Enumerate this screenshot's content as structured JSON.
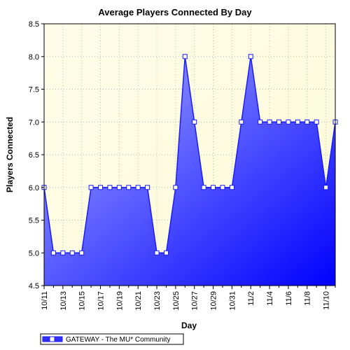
{
  "chart_data": {
    "type": "area",
    "title": "Average Players Connected By Day",
    "xlabel": "Day",
    "ylabel": "Players Connected",
    "ylim": [
      4.5,
      8.5
    ],
    "yticks": [
      "4.5",
      "5.0",
      "5.5",
      "6.0",
      "6.5",
      "7.0",
      "7.5",
      "8.0",
      "8.5"
    ],
    "x": [
      "10/11",
      "10/12",
      "10/13",
      "10/14",
      "10/15",
      "10/16",
      "10/17",
      "10/18",
      "10/19",
      "10/20",
      "10/21",
      "10/22",
      "10/23",
      "10/24",
      "10/25",
      "10/26",
      "10/27",
      "10/28",
      "10/29",
      "10/30",
      "10/31",
      "11/1",
      "11/2",
      "11/3",
      "11/4",
      "11/5",
      "11/6",
      "11/7",
      "11/8",
      "11/9",
      "11/10",
      "11/11"
    ],
    "xtick_labels": [
      "10/11",
      "10/13",
      "10/15",
      "10/17",
      "10/19",
      "10/21",
      "10/23",
      "10/25",
      "10/27",
      "10/29",
      "10/31",
      "11/2",
      "11/4",
      "11/6",
      "11/8",
      "11/10"
    ],
    "series": [
      {
        "name": "GATEWAY - The MU* Community",
        "values": [
          6,
          5,
          5,
          5,
          5,
          6,
          6,
          6,
          6,
          6,
          6,
          6,
          5,
          5,
          6,
          8,
          7,
          6,
          6,
          6,
          6,
          7,
          8,
          7,
          7,
          7,
          7,
          7,
          7,
          7,
          6,
          7
        ]
      }
    ],
    "grid": true,
    "legend_position": "bottom-left",
    "colors": {
      "plot_bg": "#fdfce0",
      "area_top": "#aab0ff",
      "area_bottom": "#0000ff",
      "line": "#1a1aff",
      "marker_fill": "#ffffff",
      "marker_stroke": "#1a1aff",
      "grid": "#b8b8b8"
    }
  }
}
